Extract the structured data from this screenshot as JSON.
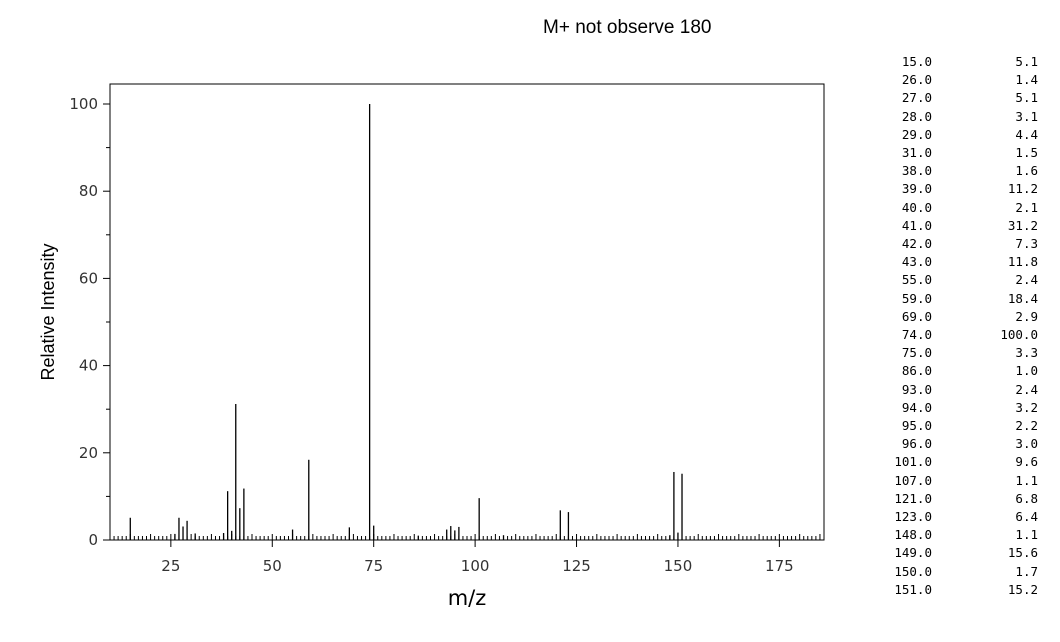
{
  "note": "M+ not observe 180",
  "chart_data": {
    "type": "bar",
    "title": "",
    "xlabel": "m/z",
    "ylabel": "Relative Intensity",
    "xlim": [
      10,
      186
    ],
    "ylim": [
      0,
      100
    ],
    "x_ticks": [
      25,
      50,
      75,
      100,
      125,
      150,
      175
    ],
    "y_ticks": [
      0,
      20,
      40,
      60,
      80,
      100
    ],
    "grid": false,
    "legend": "none",
    "x": [
      15,
      26,
      27,
      28,
      29,
      31,
      38,
      39,
      40,
      41,
      42,
      43,
      55,
      59,
      69,
      74,
      75,
      86,
      93,
      94,
      95,
      96,
      101,
      107,
      121,
      123,
      148,
      149,
      150,
      151
    ],
    "values": [
      5.1,
      1.4,
      5.1,
      3.1,
      4.4,
      1.5,
      1.6,
      11.2,
      2.1,
      31.2,
      7.3,
      11.8,
      2.4,
      18.4,
      2.9,
      100.0,
      3.3,
      1.0,
      2.4,
      3.2,
      2.2,
      3.0,
      9.6,
      1.1,
      6.8,
      6.4,
      1.1,
      15.6,
      1.7,
      15.2
    ]
  },
  "peak_table": {
    "rows": [
      [
        "15.0",
        "5.1"
      ],
      [
        "26.0",
        "1.4"
      ],
      [
        "27.0",
        "5.1"
      ],
      [
        "28.0",
        "3.1"
      ],
      [
        "29.0",
        "4.4"
      ],
      [
        "31.0",
        "1.5"
      ],
      [
        "38.0",
        "1.6"
      ],
      [
        "39.0",
        "11.2"
      ],
      [
        "40.0",
        "2.1"
      ],
      [
        "41.0",
        "31.2"
      ],
      [
        "42.0",
        "7.3"
      ],
      [
        "43.0",
        "11.8"
      ],
      [
        "55.0",
        "2.4"
      ],
      [
        "59.0",
        "18.4"
      ],
      [
        "69.0",
        "2.9"
      ],
      [
        "74.0",
        "100.0"
      ],
      [
        "75.0",
        "3.3"
      ],
      [
        "86.0",
        "1.0"
      ],
      [
        "93.0",
        "2.4"
      ],
      [
        "94.0",
        "3.2"
      ],
      [
        "95.0",
        "2.2"
      ],
      [
        "96.0",
        "3.0"
      ],
      [
        "101.0",
        "9.6"
      ],
      [
        "107.0",
        "1.1"
      ],
      [
        "121.0",
        "6.8"
      ],
      [
        "123.0",
        "6.4"
      ],
      [
        "148.0",
        "1.1"
      ],
      [
        "149.0",
        "15.6"
      ],
      [
        "150.0",
        "1.7"
      ],
      [
        "151.0",
        "15.2"
      ]
    ]
  }
}
